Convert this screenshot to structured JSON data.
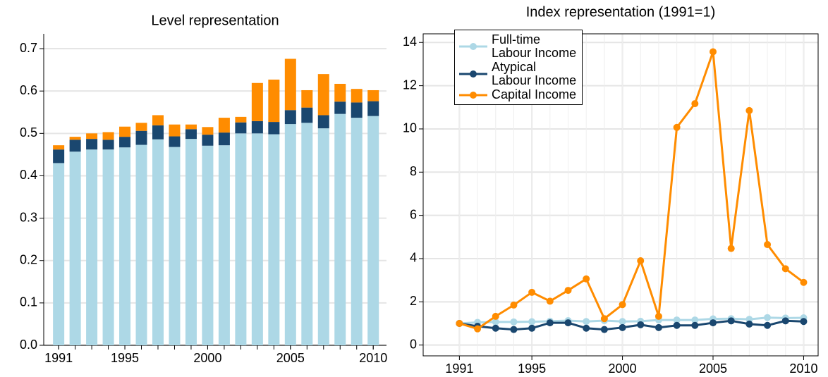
{
  "chart_data": [
    {
      "type": "stacked_bar",
      "title": "Level representation",
      "x": [
        1991,
        1992,
        1993,
        1994,
        1995,
        1996,
        1997,
        1998,
        1999,
        2000,
        2001,
        2002,
        2003,
        2004,
        2005,
        2006,
        2007,
        2008,
        2009,
        2010
      ],
      "series": [
        {
          "color": "#add8e6",
          "values": [
            0.43,
            0.457,
            0.462,
            0.462,
            0.467,
            0.473,
            0.486,
            0.468,
            0.487,
            0.471,
            0.472,
            0.5,
            0.5,
            0.498,
            0.522,
            0.525,
            0.512,
            0.546,
            0.537,
            0.541
          ]
        },
        {
          "color": "#1a476f",
          "values": [
            0.032,
            0.028,
            0.025,
            0.023,
            0.025,
            0.033,
            0.033,
            0.025,
            0.023,
            0.026,
            0.03,
            0.026,
            0.029,
            0.029,
            0.033,
            0.036,
            0.031,
            0.029,
            0.036,
            0.035
          ]
        },
        {
          "color": "#ff8c00",
          "values": [
            0.01,
            0.007,
            0.013,
            0.018,
            0.024,
            0.019,
            0.024,
            0.028,
            0.011,
            0.018,
            0.035,
            0.013,
            0.09,
            0.1,
            0.121,
            0.041,
            0.097,
            0.042,
            0.032,
            0.026
          ]
        }
      ],
      "xlim": [
        1990.1,
        2010.8
      ],
      "xticks": [
        1991,
        1995,
        2000,
        2005,
        2010
      ],
      "ylim": [
        0,
        0.735
      ],
      "yticks": [
        {
          "value": 0,
          "label": "0.0"
        },
        0.1,
        0.2,
        0.3,
        0.4,
        0.5,
        0.6,
        0.7
      ],
      "grid": true
    },
    {
      "type": "line",
      "title": "Index representation (1991=1)",
      "x": [
        1991,
        1992,
        1993,
        1994,
        1995,
        1996,
        1997,
        1998,
        1999,
        2000,
        2001,
        2002,
        2003,
        2004,
        2005,
        2006,
        2007,
        2008,
        2009,
        2010
      ],
      "series": [
        {
          "name": "Full-time\nLabour Income",
          "color": "#add8e6",
          "values": [
            1,
            1.05,
            1.07,
            1.07,
            1.08,
            1.1,
            1.13,
            1.09,
            1.13,
            1.09,
            1.1,
            1.16,
            1.16,
            1.16,
            1.21,
            1.22,
            1.19,
            1.27,
            1.25,
            1.26
          ]
        },
        {
          "name": "Atypical\nLabour Income",
          "color": "#1a476f",
          "values": [
            1,
            0.87,
            0.78,
            0.72,
            0.78,
            1.03,
            1.03,
            0.78,
            0.72,
            0.81,
            0.94,
            0.81,
            0.91,
            0.91,
            1.03,
            1.12,
            0.97,
            0.91,
            1.12,
            1.09
          ]
        },
        {
          "name": "Capital Income",
          "color": "#ff8c00",
          "values": [
            1,
            0.75,
            1.33,
            1.85,
            2.44,
            2.03,
            2.53,
            3.06,
            1.22,
            1.87,
            3.9,
            1.33,
            10.07,
            11.17,
            13.57,
            4.47,
            10.85,
            4.65,
            3.53,
            2.9
          ]
        }
      ],
      "xlim": [
        1989.0,
        2010.8
      ],
      "xticks": [
        1991,
        1995,
        2000,
        2005,
        2010
      ],
      "ylim": [
        -0.5,
        14.4
      ],
      "yticks": [
        0,
        2,
        4,
        6,
        8,
        10,
        12,
        14
      ],
      "grid": true,
      "legend": "upper left"
    }
  ]
}
